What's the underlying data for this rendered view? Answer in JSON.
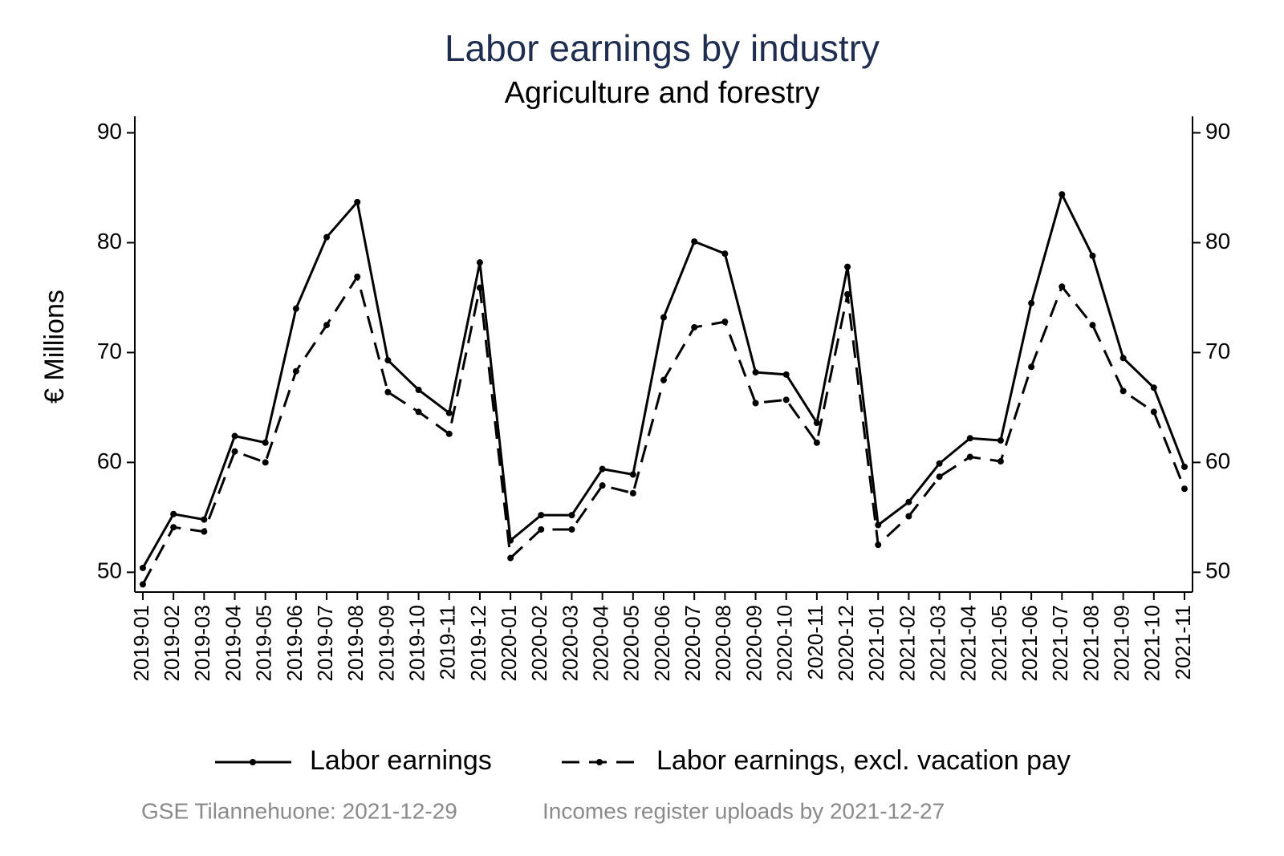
{
  "chart_data": {
    "type": "line",
    "title": "Labor earnings by industry",
    "subtitle": "Agriculture and forestry",
    "y_label": "€ Millions",
    "categories": [
      "2019-01",
      "2019-02",
      "2019-03",
      "2019-04",
      "2019-05",
      "2019-06",
      "2019-07",
      "2019-08",
      "2019-09",
      "2019-10",
      "2019-11",
      "2019-12",
      "2020-01",
      "2020-02",
      "2020-03",
      "2020-04",
      "2020-05",
      "2020-06",
      "2020-07",
      "2020-08",
      "2020-09",
      "2020-10",
      "2020-11",
      "2020-12",
      "2021-01",
      "2021-02",
      "2021-03",
      "2021-04",
      "2021-05",
      "2021-06",
      "2021-07",
      "2021-08",
      "2021-09",
      "2021-10",
      "2021-11"
    ],
    "series": [
      {
        "name": "Labor earnings",
        "color": "#000000",
        "dash": "solid",
        "values": [
          50.4,
          55.3,
          54.8,
          62.4,
          61.8,
          74.0,
          80.5,
          83.7,
          69.3,
          66.6,
          64.5,
          78.2,
          52.9,
          55.2,
          55.2,
          59.4,
          58.9,
          73.2,
          80.1,
          79.0,
          68.2,
          68.0,
          63.6,
          77.8,
          54.3,
          56.4,
          59.9,
          62.2,
          62.0,
          74.5,
          84.4,
          78.8,
          69.5,
          66.8,
          59.6
        ]
      },
      {
        "name": "Labor earnings, excl. vacation pay",
        "color": "#000000",
        "dash": "dashed",
        "values": [
          48.9,
          54.1,
          53.7,
          61.0,
          60.0,
          68.3,
          72.5,
          76.9,
          66.4,
          64.6,
          62.6,
          75.9,
          51.3,
          53.9,
          53.9,
          57.9,
          57.2,
          67.5,
          72.3,
          72.8,
          65.4,
          65.7,
          61.8,
          75.3,
          52.5,
          55.1,
          58.7,
          60.5,
          60.1,
          68.7,
          76.0,
          72.5,
          66.5,
          64.6,
          57.6
        ]
      }
    ],
    "ylim": [
      48.2,
      91.5
    ],
    "yticks": [
      50,
      60,
      70,
      80,
      90
    ],
    "right_axis": true,
    "legend": "bottom",
    "footnotes": [
      "GSE Tilannehuone: 2021-12-29",
      "Incomes register uploads by 2021-12-27"
    ]
  }
}
